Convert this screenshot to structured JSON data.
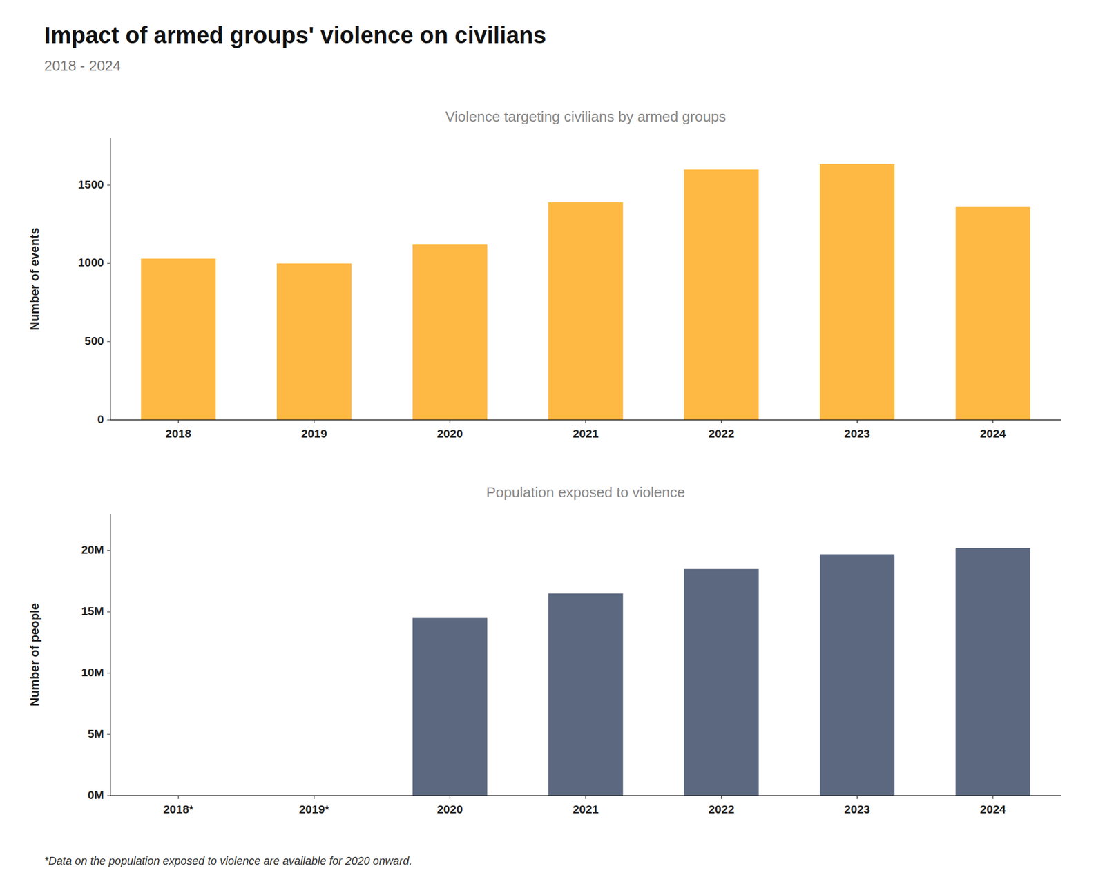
{
  "title": "Impact of armed groups' violence on civilians",
  "subtitle": "2018 - 2024",
  "annotations": [
    "*Data on the population exposed to violence are available for 2020 onward."
  ],
  "chart_data": [
    {
      "type": "bar",
      "title": "Violence targeting civilians by armed groups",
      "ylabel": "Number of events",
      "categories": [
        "2018",
        "2019",
        "2020",
        "2021",
        "2022",
        "2023",
        "2024"
      ],
      "values": [
        1030,
        1000,
        1120,
        1390,
        1600,
        1635,
        1360
      ],
      "color": "#FDB944",
      "ylim": [
        0,
        1800
      ],
      "yticks": [
        0,
        500,
        1000,
        1500
      ],
      "grid": false
    },
    {
      "type": "bar",
      "title": "Population exposed to violence",
      "ylabel": "Number of people",
      "categories": [
        "2018*",
        "2019*",
        "2020",
        "2021",
        "2022",
        "2023",
        "2024"
      ],
      "values": [
        0,
        0,
        14500000,
        16500000,
        18500000,
        19700000,
        20200000
      ],
      "color": "#5B6880",
      "ylim": [
        0,
        23000000
      ],
      "yticks": [
        {
          "value": 0,
          "label": "0M"
        },
        {
          "value": 5000000,
          "label": "5M"
        },
        {
          "value": 10000000,
          "label": "10M"
        },
        {
          "value": 15000000,
          "label": "15M"
        },
        {
          "value": 20000000,
          "label": "20M"
        }
      ],
      "grid": false
    }
  ]
}
